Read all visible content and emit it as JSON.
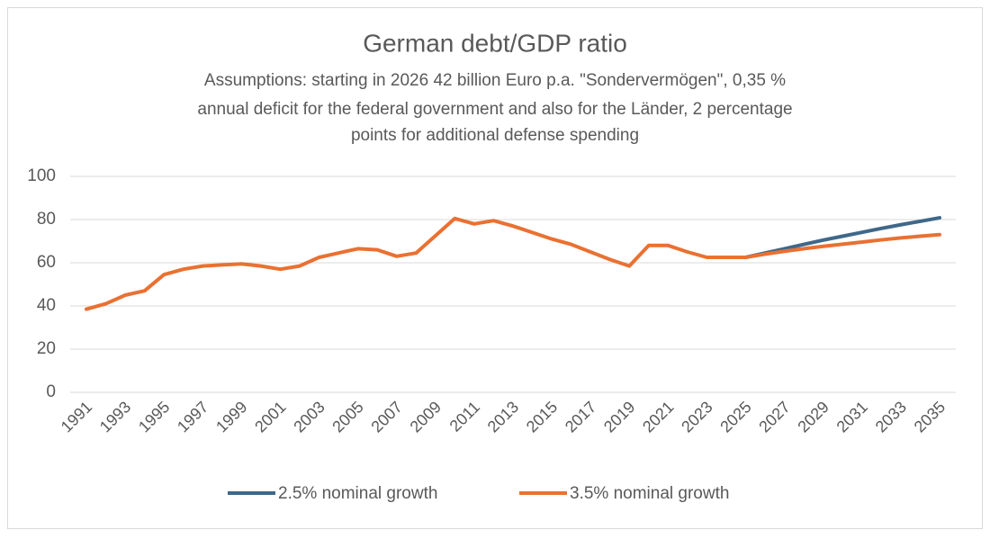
{
  "chart_data": {
    "type": "line",
    "title": "German debt/GDP ratio",
    "subtitle": [
      "Assumptions:  starting in 2026 42 billion Euro p.a. \"Sondervermögen\", 0,35 %",
      "annual deficit for the federal government and also for the Länder,  2 percentage",
      "points for additional defense spending"
    ],
    "categories": [
      "1991",
      null,
      "1993",
      null,
      "1995",
      null,
      "1997",
      null,
      "1999",
      null,
      "2001",
      null,
      "2003",
      null,
      "2005",
      null,
      "2007",
      null,
      "2009",
      null,
      "2011",
      null,
      "2013",
      null,
      "2015",
      null,
      "2017",
      null,
      "2019",
      null,
      "2021",
      null,
      "2023",
      null,
      "2025",
      null,
      "2027",
      null,
      "2029",
      null,
      "2031",
      null,
      "2033",
      null,
      "2035"
    ],
    "series": [
      {
        "name": "2.5% nominal growth",
        "color": "#3f6889",
        "values": [
          null,
          null,
          null,
          null,
          null,
          null,
          null,
          null,
          null,
          null,
          null,
          null,
          null,
          null,
          null,
          null,
          null,
          null,
          null,
          null,
          null,
          null,
          null,
          null,
          null,
          null,
          null,
          null,
          null,
          null,
          null,
          null,
          null,
          null,
          62.5,
          64.5,
          66.5,
          68.5,
          70.5,
          72.3,
          74.1,
          75.9,
          77.6,
          79.2,
          80.8
        ]
      },
      {
        "name": "3.5% nominal growth",
        "color": "#e97132",
        "values": [
          38.5,
          41,
          45,
          47,
          54.5,
          57,
          58.5,
          59,
          59.5,
          58.5,
          57,
          58.5,
          62.5,
          64.5,
          66.5,
          66,
          63,
          64.5,
          72.5,
          80.5,
          78,
          79.5,
          77,
          74,
          71,
          68.5,
          65,
          61.5,
          58.5,
          68,
          68,
          65,
          62.5,
          62.5,
          62.5,
          64,
          65.3,
          66.5,
          67.6,
          68.6,
          69.6,
          70.6,
          71.5,
          72.3,
          73
        ]
      }
    ],
    "ylim": [
      0,
      100
    ],
    "yticks": [
      0,
      20,
      40,
      60,
      80,
      100
    ],
    "grid": true
  }
}
